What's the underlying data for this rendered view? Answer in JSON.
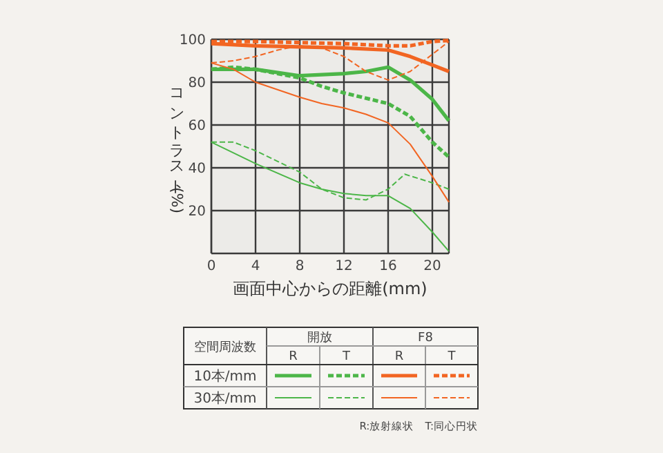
{
  "chart_data": {
    "type": "line",
    "xlabel": "画面中心からの距離(mm)",
    "ylabel": "コントラスト(%)",
    "xlim": [
      0,
      21.5
    ],
    "ylim": [
      0,
      100
    ],
    "xticks": [
      0,
      4,
      8,
      12,
      16,
      20
    ],
    "yticks": [
      20,
      40,
      60,
      80,
      100
    ],
    "grid": true,
    "annotations": [
      "空間周波数",
      "開放",
      "F8",
      "R",
      "T",
      "R",
      "T",
      "10本/mm",
      "30本/mm",
      "R:放射線状　T:同心円状"
    ],
    "series": [
      {
        "color": "#4cb648",
        "line_style": "solid",
        "x": [
          0,
          4,
          8,
          12,
          14,
          16,
          18,
          20,
          21.5
        ],
        "values": [
          86,
          86,
          83,
          84,
          85,
          87,
          81,
          72,
          62
        ]
      },
      {
        "color": "#4cb648",
        "line_style": "dashed",
        "x": [
          0,
          2,
          4,
          8,
          10,
          12,
          16,
          18,
          20,
          21.5
        ],
        "values": [
          86,
          87,
          86,
          82,
          78,
          75,
          70,
          64,
          52,
          45
        ]
      },
      {
        "color": "#f26522",
        "line_style": "solid",
        "x": [
          0,
          4,
          8,
          12,
          16,
          18,
          20,
          21.5
        ],
        "values": [
          98,
          97,
          96.5,
          96,
          95,
          92,
          88,
          85
        ]
      },
      {
        "color": "#f26522",
        "line_style": "dashed",
        "x": [
          0,
          4,
          8,
          12,
          16,
          18,
          20,
          21.5
        ],
        "values": [
          99,
          99,
          98.5,
          98,
          97,
          97,
          99,
          99.5
        ]
      },
      {
        "color": "#4cb648",
        "line_style": "solid",
        "x": [
          0,
          2,
          4,
          8,
          10,
          12,
          14,
          16,
          18,
          20,
          21.5
        ],
        "values": [
          52,
          47,
          42,
          33,
          30,
          28,
          27,
          27,
          21,
          10,
          1
        ]
      },
      {
        "color": "#4cb648",
        "line_style": "dashed",
        "x": [
          0,
          2,
          4,
          8,
          10,
          12,
          14,
          16,
          17.5,
          20,
          21.5
        ],
        "values": [
          52,
          52,
          48,
          38,
          30,
          26,
          25,
          30,
          37,
          33,
          30
        ]
      },
      {
        "color": "#f26522",
        "line_style": "solid",
        "x": [
          0,
          2,
          4,
          8,
          10,
          12,
          14,
          16,
          18,
          20,
          21.5
        ],
        "values": [
          89,
          86,
          80,
          73,
          70,
          68,
          65,
          61,
          51,
          36,
          24
        ]
      },
      {
        "color": "#f26522",
        "line_style": "dashed",
        "x": [
          0,
          2,
          4,
          6,
          8,
          10,
          12,
          14,
          16,
          18,
          20,
          21.5
        ],
        "values": [
          89,
          90,
          92,
          95,
          97,
          96,
          92,
          85,
          81,
          85,
          93,
          99
        ]
      }
    ]
  }
}
